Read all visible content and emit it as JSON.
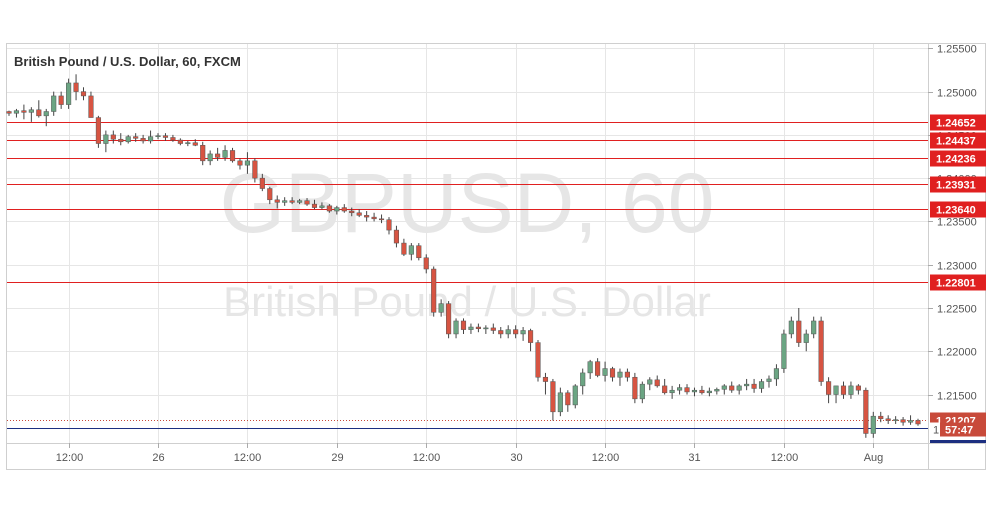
{
  "header": {
    "title": "British Pound / U.S. Dollar, 60, FXCM"
  },
  "watermark": {
    "symbol": "GBPUSD, 60",
    "name": "British Pound / U.S. Dollar"
  },
  "countdown": "57:47",
  "colors": {
    "up": "#6ba583",
    "down": "#d75442",
    "wick": "#444444",
    "level_line": "#e02020",
    "level_badge": "#e02020",
    "price_badge": "#c84a3a",
    "countdown_line": "#1c2f80",
    "grid": "#e6e6e6",
    "axis_text": "#555555",
    "watermark": "#e6e6e6"
  },
  "chart_data": {
    "type": "candlestick",
    "title": "British Pound / U.S. Dollar, 60, FXCM",
    "ylim": [
      1.2094,
      1.2555
    ],
    "y_ticks": [
      "1.25500",
      "1.25000",
      "1.24500",
      "1.24000",
      "1.23500",
      "1.23000",
      "1.22500",
      "1.22000",
      "1.21500"
    ],
    "y_tick_values": [
      1.255,
      1.25,
      1.245,
      1.24,
      1.235,
      1.23,
      1.225,
      1.22,
      1.215
    ],
    "x_ticks": [
      {
        "label": "12:00",
        "index": 8
      },
      {
        "label": "26",
        "index": 20
      },
      {
        "label": "12:00",
        "index": 32
      },
      {
        "label": "29",
        "index": 44
      },
      {
        "label": "12:00",
        "index": 56
      },
      {
        "label": "30",
        "index": 68
      },
      {
        "label": "12:00",
        "index": 80
      },
      {
        "label": "31",
        "index": 92
      },
      {
        "label": "12:00",
        "index": 104
      },
      {
        "label": "Aug",
        "index": 116
      }
    ],
    "levels": [
      {
        "label": "1.24652",
        "value": 1.24652
      },
      {
        "label": "1.24437",
        "value": 1.24437
      },
      {
        "label": "1.24236",
        "value": 1.24236
      },
      {
        "label": "1.23931",
        "value": 1.23931
      },
      {
        "label": "1.23640",
        "value": 1.2364
      },
      {
        "label": "1.22801",
        "value": 1.22801
      }
    ],
    "current_price": {
      "label": "1.21207",
      "value": 1.21207
    },
    "countdown_label": "1",
    "candles": [
      [
        1.2477,
        1.2478,
        1.2472,
        1.2475
      ],
      [
        1.2475,
        1.248,
        1.247,
        1.2478
      ],
      [
        1.2478,
        1.2485,
        1.2468,
        1.2476
      ],
      [
        1.2476,
        1.2482,
        1.2465,
        1.2479
      ],
      [
        1.2479,
        1.249,
        1.247,
        1.2472
      ],
      [
        1.2472,
        1.248,
        1.246,
        1.2477
      ],
      [
        1.2477,
        1.25,
        1.2472,
        1.2495
      ],
      [
        1.2495,
        1.25,
        1.248,
        1.2485
      ],
      [
        1.2485,
        1.2515,
        1.248,
        1.251
      ],
      [
        1.251,
        1.252,
        1.249,
        1.25
      ],
      [
        1.25,
        1.2505,
        1.249,
        1.2495
      ],
      [
        1.2495,
        1.25,
        1.247,
        1.247
      ],
      [
        1.247,
        1.2472,
        1.2435,
        1.244
      ],
      [
        1.244,
        1.2455,
        1.243,
        1.245
      ],
      [
        1.245,
        1.2455,
        1.244,
        1.2445
      ],
      [
        1.2445,
        1.2452,
        1.2438,
        1.2442
      ],
      [
        1.2442,
        1.245,
        1.244,
        1.2448
      ],
      [
        1.2448,
        1.2452,
        1.2442,
        1.2446
      ],
      [
        1.2446,
        1.245,
        1.244,
        1.2443
      ],
      [
        1.2443,
        1.2455,
        1.244,
        1.2448
      ],
      [
        1.2448,
        1.2452,
        1.2445,
        1.2449
      ],
      [
        1.2449,
        1.2452,
        1.2443,
        1.2447
      ],
      [
        1.2447,
        1.245,
        1.2442,
        1.2444
      ],
      [
        1.2444,
        1.2446,
        1.2438,
        1.244
      ],
      [
        1.244,
        1.2443,
        1.2437,
        1.2441
      ],
      [
        1.2441,
        1.2445,
        1.2437,
        1.2438
      ],
      [
        1.2438,
        1.2442,
        1.2415,
        1.242
      ],
      [
        1.242,
        1.2432,
        1.2415,
        1.2428
      ],
      [
        1.2428,
        1.2435,
        1.242,
        1.2424
      ],
      [
        1.2424,
        1.2438,
        1.242,
        1.2432
      ],
      [
        1.2432,
        1.2435,
        1.2418,
        1.242
      ],
      [
        1.242,
        1.2423,
        1.241,
        1.2415
      ],
      [
        1.2415,
        1.243,
        1.2405,
        1.242
      ],
      [
        1.242,
        1.2423,
        1.2395,
        1.24
      ],
      [
        1.24,
        1.2405,
        1.2385,
        1.2388
      ],
      [
        1.2388,
        1.239,
        1.237,
        1.2375
      ],
      [
        1.2375,
        1.238,
        1.2365,
        1.2372
      ],
      [
        1.2372,
        1.2378,
        1.2368,
        1.2374
      ],
      [
        1.2374,
        1.2378,
        1.237,
        1.2372
      ],
      [
        1.2372,
        1.2376,
        1.237,
        1.2374
      ],
      [
        1.2374,
        1.2377,
        1.2368,
        1.237
      ],
      [
        1.237,
        1.2375,
        1.2364,
        1.2366
      ],
      [
        1.2366,
        1.2372,
        1.2364,
        1.2368
      ],
      [
        1.2368,
        1.237,
        1.236,
        1.2362
      ],
      [
        1.2362,
        1.2368,
        1.2358,
        1.2366
      ],
      [
        1.2366,
        1.237,
        1.236,
        1.2362
      ],
      [
        1.2362,
        1.2366,
        1.2356,
        1.236
      ],
      [
        1.236,
        1.2364,
        1.2355,
        1.2357
      ],
      [
        1.2357,
        1.2362,
        1.235,
        1.2355
      ],
      [
        1.2355,
        1.236,
        1.235,
        1.2353
      ],
      [
        1.2353,
        1.2358,
        1.2348,
        1.2352
      ],
      [
        1.2352,
        1.2355,
        1.2335,
        1.234
      ],
      [
        1.234,
        1.2345,
        1.232,
        1.2325
      ],
      [
        1.2325,
        1.233,
        1.231,
        1.2312
      ],
      [
        1.2312,
        1.2325,
        1.2305,
        1.2322
      ],
      [
        1.2322,
        1.2325,
        1.2305,
        1.2308
      ],
      [
        1.2308,
        1.2312,
        1.229,
        1.2295
      ],
      [
        1.2295,
        1.2298,
        1.224,
        1.2245
      ],
      [
        1.2245,
        1.226,
        1.224,
        1.2255
      ],
      [
        1.2255,
        1.2258,
        1.2215,
        1.222
      ],
      [
        1.222,
        1.2238,
        1.2215,
        1.2235
      ],
      [
        1.2235,
        1.2238,
        1.222,
        1.2225
      ],
      [
        1.2225,
        1.2232,
        1.222,
        1.2228
      ],
      [
        1.2228,
        1.2232,
        1.2222,
        1.2226
      ],
      [
        1.2226,
        1.223,
        1.222,
        1.2227
      ],
      [
        1.2227,
        1.2232,
        1.222,
        1.2224
      ],
      [
        1.2224,
        1.2228,
        1.2215,
        1.222
      ],
      [
        1.222,
        1.223,
        1.2215,
        1.2225
      ],
      [
        1.2225,
        1.223,
        1.2215,
        1.222
      ],
      [
        1.222,
        1.2228,
        1.2212,
        1.2224
      ],
      [
        1.2224,
        1.2226,
        1.22,
        1.221
      ],
      [
        1.221,
        1.2213,
        1.2165,
        1.217
      ],
      [
        1.217,
        1.2175,
        1.215,
        1.2165
      ],
      [
        1.2165,
        1.2168,
        1.212,
        1.213
      ],
      [
        1.213,
        1.2158,
        1.2125,
        1.2152
      ],
      [
        1.2152,
        1.2155,
        1.213,
        1.2138
      ],
      [
        1.2138,
        1.2162,
        1.2134,
        1.216
      ],
      [
        1.216,
        1.218,
        1.215,
        1.2175
      ],
      [
        1.2175,
        1.219,
        1.2168,
        1.2188
      ],
      [
        1.2188,
        1.2192,
        1.217,
        1.2172
      ],
      [
        1.2172,
        1.2188,
        1.2165,
        1.218
      ],
      [
        1.218,
        1.2182,
        1.2165,
        1.217
      ],
      [
        1.217,
        1.218,
        1.216,
        1.2176
      ],
      [
        1.2176,
        1.218,
        1.2165,
        1.217
      ],
      [
        1.217,
        1.2175,
        1.214,
        1.2145
      ],
      [
        1.2145,
        1.2165,
        1.214,
        1.2162
      ],
      [
        1.2162,
        1.217,
        1.2155,
        1.2167
      ],
      [
        1.2167,
        1.2172,
        1.2158,
        1.216
      ],
      [
        1.216,
        1.2168,
        1.215,
        1.2152
      ],
      [
        1.2152,
        1.216,
        1.2145,
        1.2155
      ],
      [
        1.2155,
        1.2162,
        1.215,
        1.2158
      ],
      [
        1.2158,
        1.2162,
        1.215,
        1.2153
      ],
      [
        1.2153,
        1.2158,
        1.2148,
        1.2155
      ],
      [
        1.2155,
        1.216,
        1.215,
        1.2152
      ],
      [
        1.2152,
        1.2158,
        1.2148,
        1.2154
      ],
      [
        1.2154,
        1.2158,
        1.215,
        1.2156
      ],
      [
        1.2156,
        1.2162,
        1.215,
        1.216
      ],
      [
        1.216,
        1.2165,
        1.2152,
        1.2155
      ],
      [
        1.2155,
        1.2162,
        1.215,
        1.216
      ],
      [
        1.216,
        1.2168,
        1.2155,
        1.2162
      ],
      [
        1.2162,
        1.2168,
        1.2152,
        1.2157
      ],
      [
        1.2157,
        1.2168,
        1.2152,
        1.2165
      ],
      [
        1.2165,
        1.2172,
        1.2158,
        1.2168
      ],
      [
        1.2168,
        1.2185,
        1.216,
        1.218
      ],
      [
        1.218,
        1.2225,
        1.2175,
        1.222
      ],
      [
        1.222,
        1.224,
        1.2215,
        1.2235
      ],
      [
        1.2235,
        1.225,
        1.2205,
        1.221
      ],
      [
        1.221,
        1.2225,
        1.22,
        1.222
      ],
      [
        1.222,
        1.224,
        1.2215,
        1.2235
      ],
      [
        1.2235,
        1.224,
        1.216,
        1.2165
      ],
      [
        1.2165,
        1.217,
        1.214,
        1.215
      ],
      [
        1.215,
        1.216,
        1.214,
        1.216
      ],
      [
        1.216,
        1.2165,
        1.2145,
        1.215
      ],
      [
        1.215,
        1.2165,
        1.2145,
        1.216
      ],
      [
        1.216,
        1.2162,
        1.215,
        1.2155
      ],
      [
        1.2155,
        1.2158,
        1.21,
        1.2105
      ],
      [
        1.2105,
        1.213,
        1.21,
        1.2125
      ],
      [
        1.2125,
        1.213,
        1.2118,
        1.2122
      ],
      [
        1.2122,
        1.2126,
        1.2116,
        1.212
      ],
      [
        1.212,
        1.2125,
        1.2116,
        1.2121
      ],
      [
        1.2121,
        1.2124,
        1.2114,
        1.2118
      ],
      [
        1.2118,
        1.2126,
        1.2115,
        1.212
      ],
      [
        1.212,
        1.2122,
        1.2114,
        1.2116
      ]
    ]
  }
}
